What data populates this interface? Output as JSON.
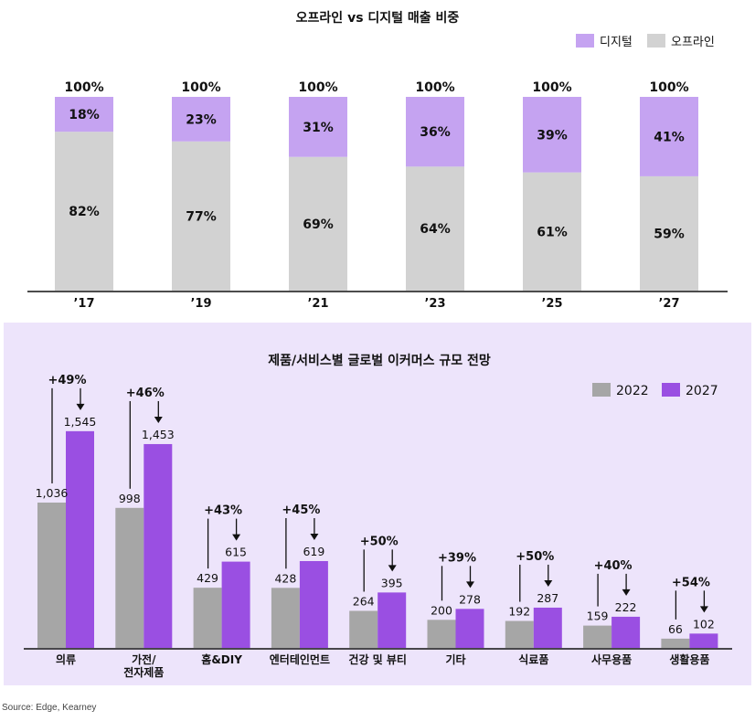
{
  "chart_data": [
    {
      "type": "bar",
      "stacked": true,
      "title": "오프라인 vs 디지털 매출 비중",
      "categories": [
        "’17",
        "’19",
        "’21",
        "’23",
        "’25",
        "’27"
      ],
      "totals": [
        "100%",
        "100%",
        "100%",
        "100%",
        "100%",
        "100%"
      ],
      "series": [
        {
          "name": "디지털",
          "values": [
            18,
            23,
            31,
            36,
            39,
            41
          ],
          "color": "#c5a3f1"
        },
        {
          "name": "오프라인",
          "values": [
            82,
            77,
            69,
            64,
            61,
            59
          ],
          "color": "#d2d2d2"
        }
      ],
      "ylim": [
        0,
        100
      ],
      "value_suffix": "%",
      "legend_position": "top-right",
      "grid": false
    },
    {
      "type": "bar",
      "title": "제품/서비스별 글로벌 이커머스 규모 전망",
      "categories": [
        "의류",
        "가전/\n전자제품",
        "홈&DIY",
        "엔터테인먼트",
        "건강 및 뷰티",
        "기타",
        "식료품",
        "사무용품",
        "생활용품"
      ],
      "series": [
        {
          "name": "2022",
          "values": [
            1036,
            998,
            429,
            428,
            264,
            200,
            192,
            159,
            66
          ],
          "labels": [
            "1,036",
            "998",
            "429",
            "428",
            "264",
            "200",
            "192",
            "159",
            "66"
          ],
          "color": "#a6a6a6"
        },
        {
          "name": "2027",
          "values": [
            1545,
            1453,
            615,
            619,
            395,
            278,
            287,
            222,
            102
          ],
          "labels": [
            "1,545",
            "1,453",
            "615",
            "619",
            "395",
            "278",
            "287",
            "222",
            "102"
          ],
          "color": "#9a4fe2"
        }
      ],
      "growth": [
        "+49%",
        "+46%",
        "+43%",
        "+45%",
        "+50%",
        "+39%",
        "+50%",
        "+40%",
        "+54%"
      ],
      "ylim": [
        0,
        1700
      ],
      "legend_position": "top-right",
      "grid": false
    }
  ],
  "source": "Source: Edge, Kearney"
}
